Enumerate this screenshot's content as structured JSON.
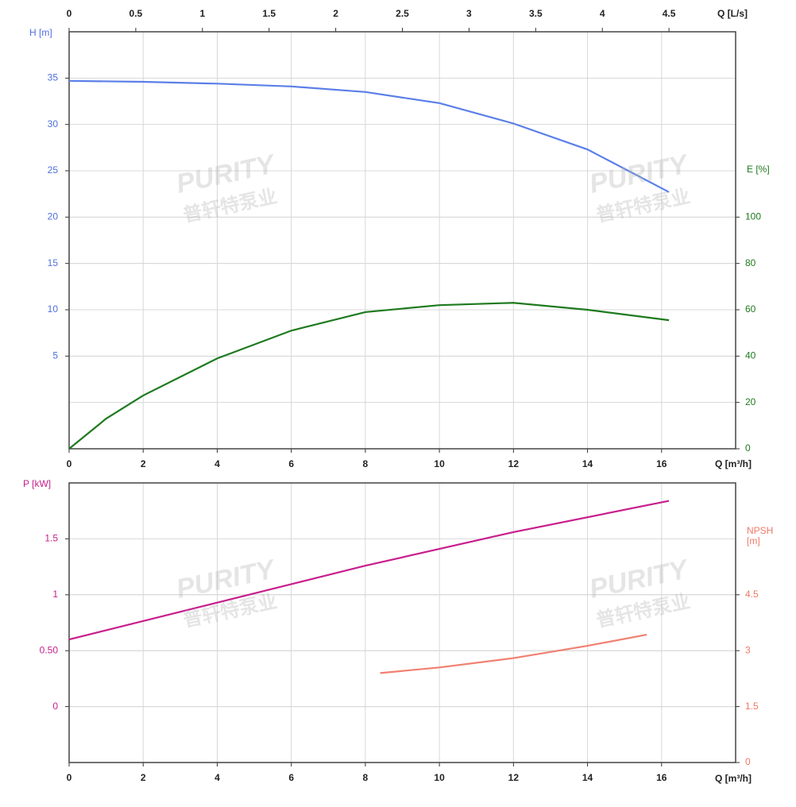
{
  "chart_data": [
    {
      "type": "line",
      "x_label": "Q [m³/h]",
      "x2_label": "Q [L/s]",
      "y_label": "H [m]",
      "y2_label": "E [%]",
      "xlim": [
        0,
        18
      ],
      "xticks": [
        0,
        2,
        4,
        6,
        8,
        10,
        12,
        14,
        16
      ],
      "x2lim": [
        0,
        5
      ],
      "x2ticks": [
        0,
        0.5,
        1,
        1.5,
        2,
        2.5,
        3,
        3.5,
        4,
        4.5
      ],
      "ylim": [
        -5,
        40
      ],
      "yticks": [
        5,
        10,
        15,
        20,
        25,
        30,
        35
      ],
      "y2lim": [
        0,
        180
      ],
      "y2ticks": [
        0,
        20,
        40,
        60,
        80,
        100
      ],
      "y_color": "#4f6fe0",
      "y2_color": "#1e7a1e",
      "grid": true,
      "series": [
        {
          "color": "#5b7fe8",
          "x": [
            0,
            2,
            4,
            6,
            8,
            10,
            12,
            14,
            16.2
          ],
          "values": [
            34.7,
            34.6,
            34.4,
            34.1,
            33.5,
            32.3,
            30.1,
            27.3,
            22.7
          ]
        },
        {
          "color": "#1e7a1e",
          "axis": "y2",
          "x": [
            0,
            1,
            2,
            4,
            6,
            8,
            10,
            12,
            14,
            16.2
          ],
          "values": [
            0,
            13,
            23,
            39,
            51,
            59,
            62,
            63,
            60,
            55.5
          ]
        }
      ]
    },
    {
      "type": "line",
      "x_label": "Q [m³/h]",
      "y_label": "P [kW]",
      "y2_label": "NPSH [m]",
      "xlim": [
        0,
        18
      ],
      "xticks": [
        0,
        2,
        4,
        6,
        8,
        10,
        12,
        14,
        16
      ],
      "ylim": [
        -0.5,
        2
      ],
      "yticks": [
        0,
        {
          "value": 0.5,
          "label": "0.50"
        },
        1,
        1.5
      ],
      "y2lim": [
        0,
        7.5
      ],
      "y2ticks": [
        0,
        1.5,
        3,
        4.5
      ],
      "y_color": "#c81e8c",
      "y2_color": "#f07868",
      "grid": true,
      "series": [
        {
          "color": "#c81e8c",
          "x": [
            0,
            4,
            8,
            12,
            16.2
          ],
          "values": [
            0.6,
            0.93,
            1.26,
            1.56,
            1.84
          ]
        },
        {
          "color": "#f08070",
          "axis": "y2",
          "x": [
            8.4,
            10,
            12,
            14,
            15.6
          ],
          "values": [
            2.4,
            2.55,
            2.8,
            3.13,
            3.43
          ]
        }
      ]
    }
  ],
  "watermark": {
    "brand": "PURITY",
    "name": "普轩特泵业"
  }
}
